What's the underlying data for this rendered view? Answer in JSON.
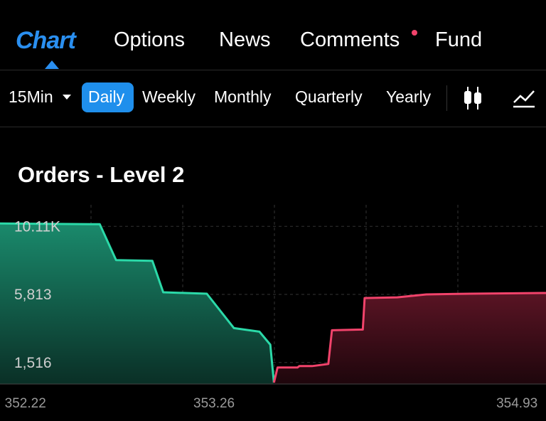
{
  "tabs": [
    "Chart",
    "Options",
    "News",
    "Comments",
    "Fund"
  ],
  "timeframes": [
    "15Min",
    "Daily",
    "Weekly",
    "Monthly",
    "Quarterly",
    "Yearly"
  ],
  "section_title": "Orders - Level 2",
  "chart_data": {
    "type": "area",
    "xlim": [
      352.08,
      355.09
    ],
    "xticks": [
      352.22,
      353.26,
      354.93
    ],
    "ylim": [
      160,
      11470
    ],
    "yticks": [
      {
        "value": 10110,
        "label": "10.11K"
      },
      {
        "value": 5813,
        "label": "5,813"
      },
      {
        "value": 1516,
        "label": "1,516"
      }
    ],
    "series": [
      {
        "color": "#2bd9a8",
        "x": [
          352.08,
          352.63,
          352.72,
          352.92,
          352.98,
          353.22,
          353.37,
          353.51,
          353.57,
          353.59
        ],
        "values": [
          10291,
          10246,
          7984,
          7939,
          5949,
          5858,
          3687,
          3461,
          2647,
          250
        ]
      },
      {
        "color": "#f2436b",
        "x": [
          353.59,
          353.61,
          353.72,
          353.73,
          353.8,
          353.89,
          353.91,
          354.08,
          354.09,
          354.27,
          354.43,
          354.67,
          355.09
        ],
        "values": [
          250,
          1200,
          1200,
          1290,
          1290,
          1426,
          3552,
          3597,
          5587,
          5632,
          5813,
          5858,
          5904
        ]
      }
    ]
  }
}
